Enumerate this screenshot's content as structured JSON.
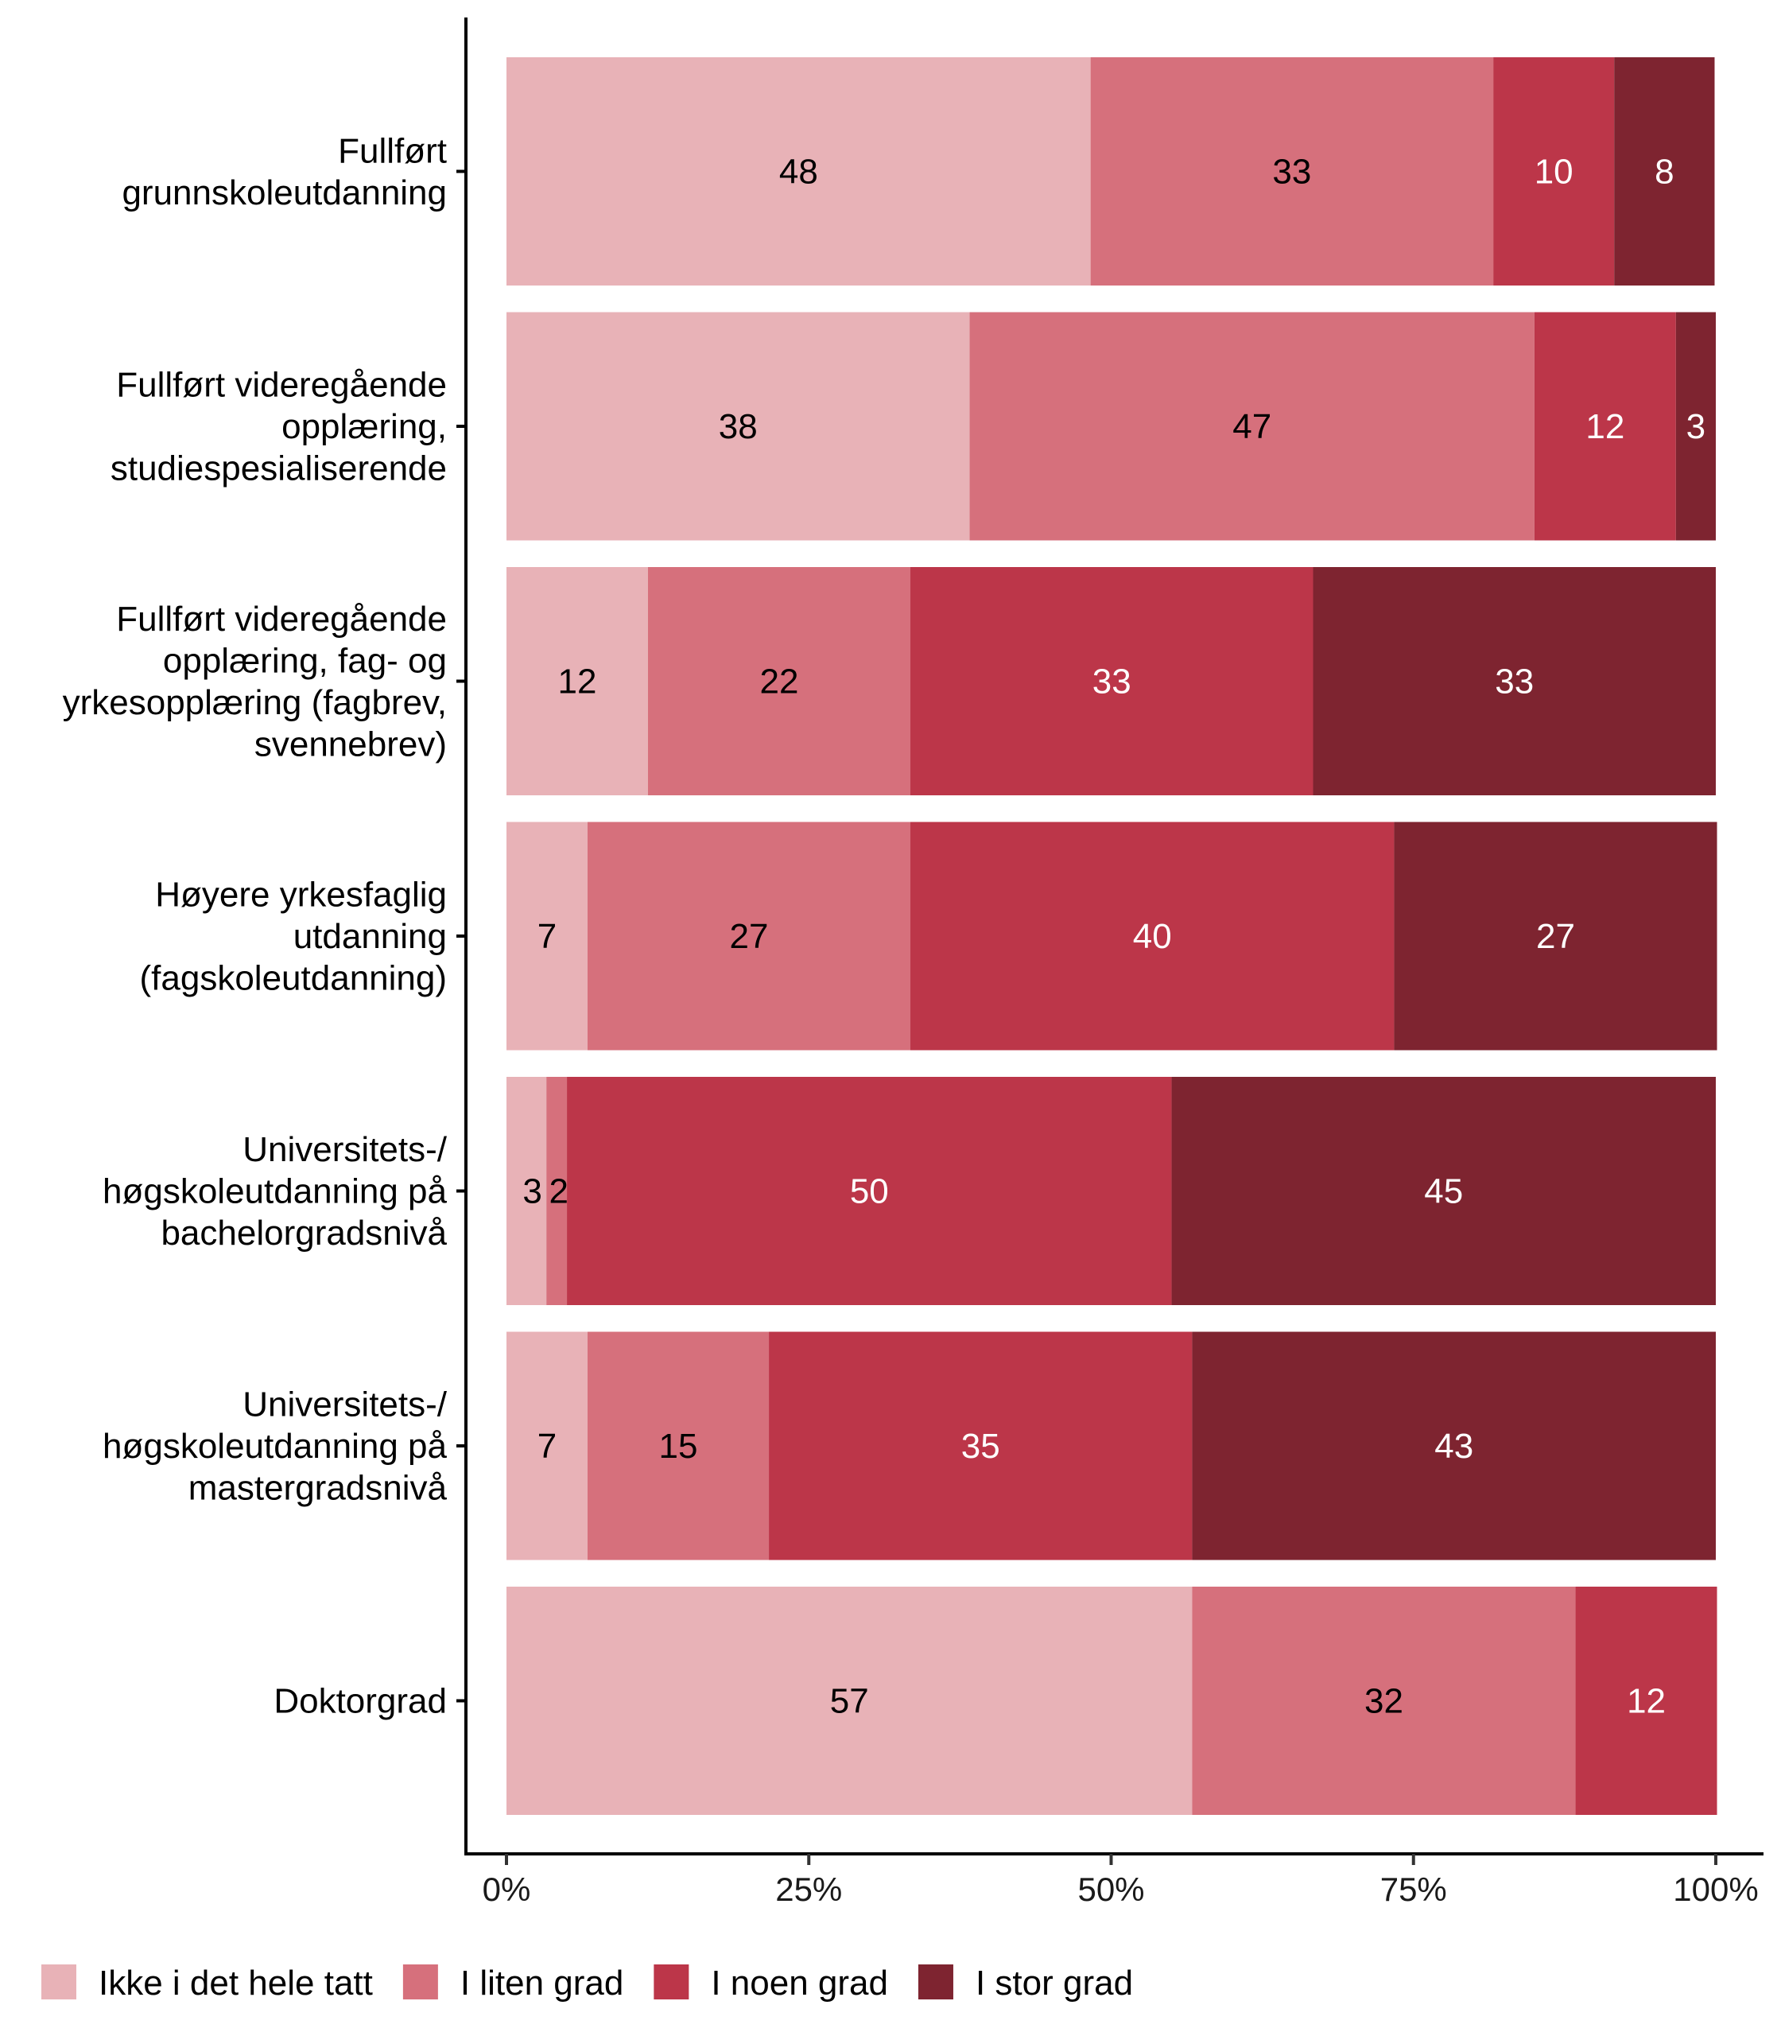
{
  "chart_data": {
    "type": "bar",
    "orientation": "horizontal",
    "stacked": true,
    "normalized": true,
    "title": "",
    "xlabel": "",
    "ylabel": "",
    "xlim": [
      0,
      100
    ],
    "x_ticks": [
      "0%",
      "25%",
      "50%",
      "75%",
      "100%"
    ],
    "grid": false,
    "legend_position": "bottom",
    "categories": [
      [
        "Fullført",
        "grunnskoleutdanning"
      ],
      [
        "Fullført videregående",
        "opplæring,",
        "studiespesialiserende"
      ],
      [
        "Fullført videregående",
        "opplæring, fag- og",
        "yrkesopplæring (fagbrev,",
        "svennebrev)"
      ],
      [
        "Høyere yrkesfaglig",
        "utdanning",
        "(fagskoleutdanning)"
      ],
      [
        "Universitets-/",
        "høgskoleutdanning på",
        "bachelorgradsnivå"
      ],
      [
        "Universitets-/",
        "høgskoleutdanning på",
        "mastergradsnivå"
      ],
      [
        "Doktorgrad"
      ]
    ],
    "series": [
      {
        "name": "Ikke i det hele tatt",
        "color": "#E8B2B7",
        "label_color": "#000000",
        "values": [
          48.3,
          38.3,
          11.7,
          6.7,
          3.3,
          6.7,
          56.7
        ],
        "labels": [
          "48",
          "38",
          "12",
          "7",
          "3",
          "7",
          "57"
        ]
      },
      {
        "name": "I liten grad",
        "color": "#D6707C",
        "label_color": "#000000",
        "values": [
          33.3,
          46.7,
          21.7,
          26.7,
          1.7,
          15.0,
          31.7
        ],
        "labels": [
          "33",
          "47",
          "22",
          "27",
          "2",
          "15",
          "32"
        ]
      },
      {
        "name": "I noen grad",
        "color": "#BC3649",
        "label_color": "#FFFFFF",
        "values": [
          10.0,
          11.7,
          33.3,
          40.0,
          50.0,
          35.0,
          11.7
        ],
        "labels": [
          "10",
          "12",
          "33",
          "40",
          "50",
          "35",
          "12"
        ]
      },
      {
        "name": "I stor grad",
        "color": "#7E2430",
        "label_color": "#FFFFFF",
        "values": [
          8.3,
          3.3,
          33.3,
          26.7,
          45.0,
          43.3,
          0
        ],
        "labels": [
          "8",
          "3",
          "33",
          "27",
          "45",
          "43",
          ""
        ]
      }
    ]
  }
}
